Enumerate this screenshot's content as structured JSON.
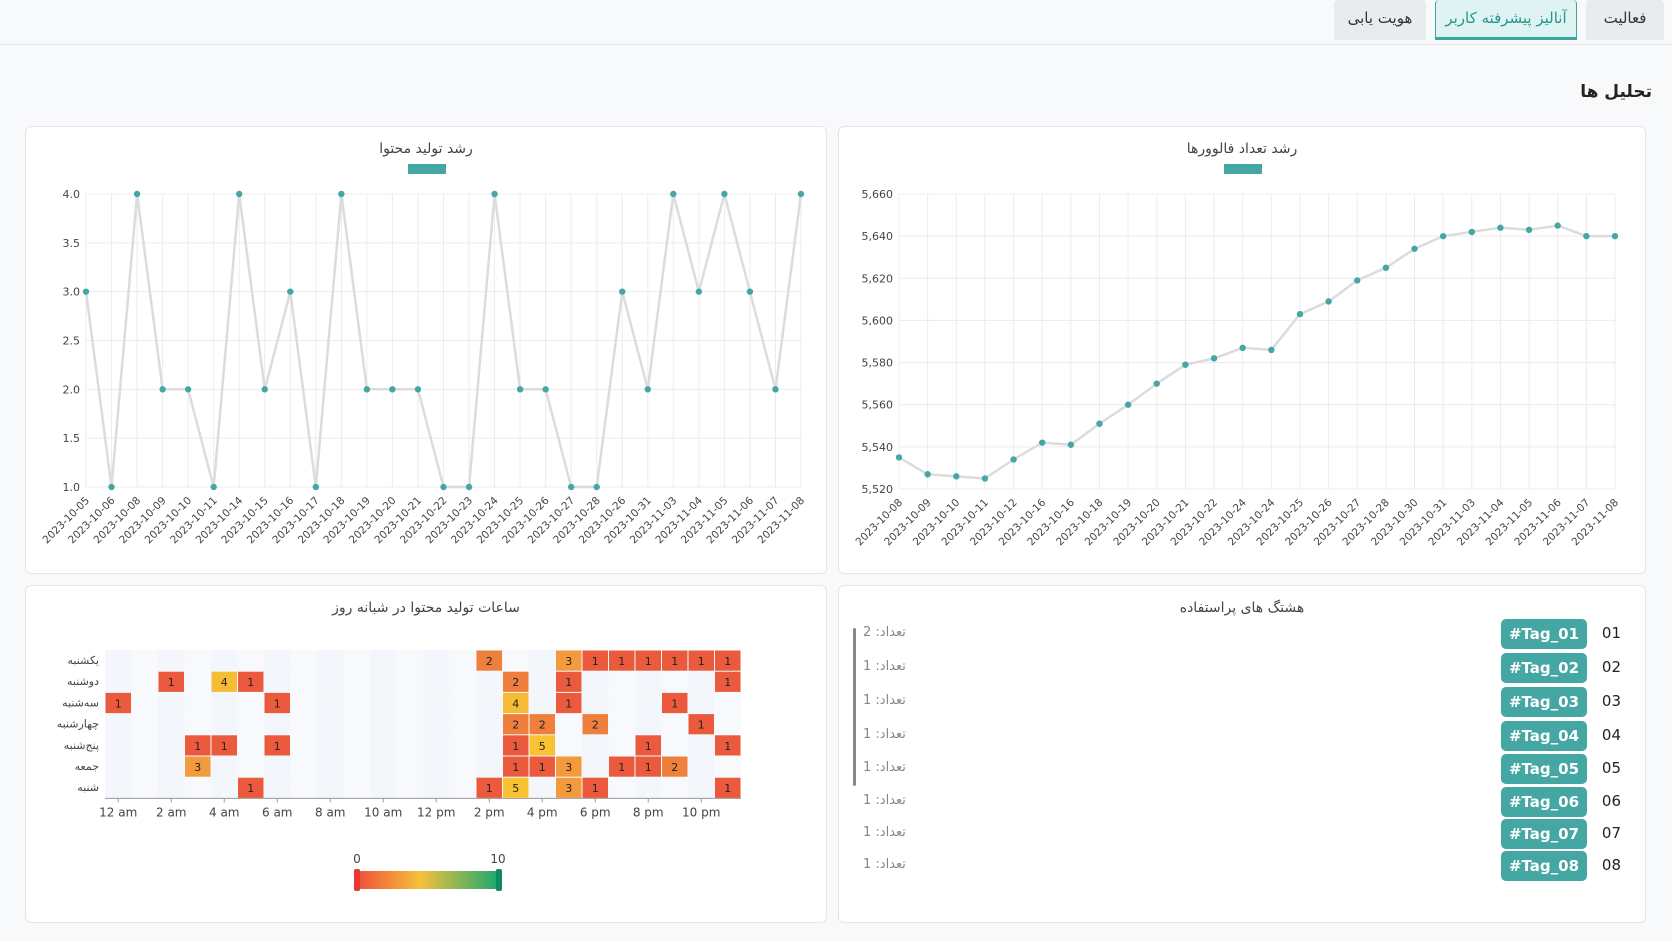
{
  "tabs": [
    {
      "label": "فعالیت",
      "active": false
    },
    {
      "label": "آنالیز پیشرفته کاربر",
      "active": true
    },
    {
      "label": "هویت یابی",
      "active": false
    }
  ],
  "section_title": "تحلیل ها",
  "colors": {
    "accent": "#45a7a4",
    "line": "#dcdcdc",
    "grid": "#ececec"
  },
  "followers_card": {
    "title": "رشد تعداد فالوورها"
  },
  "content_card": {
    "title": "رشد تولید محتوا"
  },
  "heatmap_card": {
    "title": "ساعات تولید محتوا در شبانه روز",
    "scale_min": "0",
    "scale_max": "10"
  },
  "hashtags_card": {
    "title": "هشتگ های پراستفاده",
    "items": [
      {
        "num": "01",
        "tag": "#Tag_01",
        "count": "تعداد: 2"
      },
      {
        "num": "02",
        "tag": "#Tag_02",
        "count": "تعداد: 1"
      },
      {
        "num": "03",
        "tag": "#Tag_03",
        "count": "تعداد: 1"
      },
      {
        "num": "04",
        "tag": "#Tag_04",
        "count": "تعداد: 1"
      },
      {
        "num": "05",
        "tag": "#Tag_05",
        "count": "تعداد: 1"
      },
      {
        "num": "06",
        "tag": "#Tag_06",
        "count": "تعداد: 1"
      },
      {
        "num": "07",
        "tag": "#Tag_07",
        "count": "تعداد: 1"
      },
      {
        "num": "08",
        "tag": "#Tag_08",
        "count": "تعداد: 1"
      }
    ]
  },
  "chart_data": [
    {
      "type": "line",
      "title": "رشد تعداد فالوورها",
      "ylim": [
        5520,
        5660
      ],
      "yticks": [
        "5,520",
        "5,540",
        "5,560",
        "5,580",
        "5,600",
        "5,620",
        "5,640",
        "5,660"
      ],
      "x": [
        "2023-10-08",
        "2023-10-09",
        "2023-10-10",
        "2023-10-11",
        "2023-10-12",
        "2023-10-16",
        "2023-10-16",
        "2023-10-18",
        "2023-10-19",
        "2023-10-20",
        "2023-10-21",
        "2023-10-22",
        "2023-10-24",
        "2023-10-24",
        "2023-10-25",
        "2023-10-26",
        "2023-10-27",
        "2023-10-28",
        "2023-10-30",
        "2023-10-31",
        "2023-11-03",
        "2023-11-04",
        "2023-11-05",
        "2023-11-06",
        "2023-11-07",
        "2023-11-08"
      ],
      "values": [
        5535,
        5527,
        5526,
        5525,
        5534,
        5542,
        5541,
        5551,
        5560,
        5570,
        5579,
        5582,
        5587,
        5586,
        5603,
        5609,
        5619,
        5625,
        5634,
        5640,
        5642,
        5644,
        5643,
        5645,
        5640,
        5640
      ],
      "grid": true
    },
    {
      "type": "line",
      "title": "رشد تولید محتوا",
      "ylim": [
        1,
        4
      ],
      "yticks": [
        "1.0",
        "1.5",
        "2.0",
        "2.5",
        "3.0",
        "3.5",
        "4.0"
      ],
      "x": [
        "2023-10-05",
        "2023-10-06",
        "2023-10-08",
        "2023-10-09",
        "2023-10-10",
        "2023-10-11",
        "2023-10-14",
        "2023-10-15",
        "2023-10-16",
        "2023-10-17",
        "2023-10-18",
        "2023-10-19",
        "2023-10-20",
        "2023-10-21",
        "2023-10-22",
        "2023-10-23",
        "2023-10-24",
        "2023-10-25",
        "2023-10-26",
        "2023-10-27",
        "2023-10-28",
        "2023-10-26",
        "2023-10-31",
        "2023-11-03",
        "2023-11-04",
        "2023-11-05",
        "2023-11-06",
        "2023-11-07",
        "2023-11-08"
      ],
      "values": [
        3,
        1,
        4,
        2,
        2,
        1,
        4,
        2,
        3,
        1,
        4,
        2,
        2,
        2,
        1,
        1,
        4,
        2,
        2,
        1,
        1,
        3,
        2,
        4,
        3,
        4,
        3,
        2,
        4
      ],
      "grid": true
    },
    {
      "type": "heatmap",
      "title": "ساعات تولید محتوا در شبانه روز",
      "rows": [
        "یکشنبه",
        "دوشنبه",
        "سه‌شنبه",
        "چهارشنبه",
        "پنج‌شنبه",
        "جمعه",
        "شنبه"
      ],
      "x_tick_labels": [
        "12 am",
        "2 am",
        "4 am",
        "6 am",
        "8 am",
        "10 am",
        "12 pm",
        "2 pm",
        "4 pm",
        "6 pm",
        "8 pm",
        "10 pm"
      ],
      "cells": [
        {
          "row": 0,
          "hour": 14,
          "value": 2
        },
        {
          "row": 0,
          "hour": 17,
          "value": 3
        },
        {
          "row": 0,
          "hour": 18,
          "value": 1
        },
        {
          "row": 0,
          "hour": 19,
          "value": 1
        },
        {
          "row": 0,
          "hour": 20,
          "value": 1
        },
        {
          "row": 0,
          "hour": 21,
          "value": 1
        },
        {
          "row": 0,
          "hour": 22,
          "value": 1
        },
        {
          "row": 0,
          "hour": 23,
          "value": 1
        },
        {
          "row": 1,
          "hour": 2,
          "value": 1
        },
        {
          "row": 1,
          "hour": 4,
          "value": 4
        },
        {
          "row": 1,
          "hour": 5,
          "value": 1
        },
        {
          "row": 1,
          "hour": 15,
          "value": 2
        },
        {
          "row": 1,
          "hour": 17,
          "value": 1
        },
        {
          "row": 1,
          "hour": 23,
          "value": 1
        },
        {
          "row": 2,
          "hour": 0,
          "value": 1
        },
        {
          "row": 2,
          "hour": 6,
          "value": 1
        },
        {
          "row": 2,
          "hour": 15,
          "value": 4
        },
        {
          "row": 2,
          "hour": 17,
          "value": 1
        },
        {
          "row": 2,
          "hour": 21,
          "value": 1
        },
        {
          "row": 3,
          "hour": 15,
          "value": 2
        },
        {
          "row": 3,
          "hour": 16,
          "value": 2
        },
        {
          "row": 3,
          "hour": 18,
          "value": 2
        },
        {
          "row": 3,
          "hour": 22,
          "value": 1
        },
        {
          "row": 4,
          "hour": 3,
          "value": 1
        },
        {
          "row": 4,
          "hour": 4,
          "value": 1
        },
        {
          "row": 4,
          "hour": 6,
          "value": 1
        },
        {
          "row": 4,
          "hour": 15,
          "value": 1
        },
        {
          "row": 4,
          "hour": 16,
          "value": 5
        },
        {
          "row": 4,
          "hour": 20,
          "value": 1
        },
        {
          "row": 4,
          "hour": 25,
          "value": 1
        },
        {
          "row": 5,
          "hour": 3,
          "value": 3
        },
        {
          "row": 5,
          "hour": 15,
          "value": 1
        },
        {
          "row": 5,
          "hour": 16,
          "value": 1
        },
        {
          "row": 5,
          "hour": 17,
          "value": 3
        },
        {
          "row": 5,
          "hour": 19,
          "value": 1
        },
        {
          "row": 5,
          "hour": 20,
          "value": 1
        },
        {
          "row": 5,
          "hour": 21,
          "value": 2
        },
        {
          "row": 6,
          "hour": 5,
          "value": 1
        },
        {
          "row": 6,
          "hour": 14,
          "value": 1
        },
        {
          "row": 6,
          "hour": 15,
          "value": 5
        },
        {
          "row": 6,
          "hour": 17,
          "value": 3
        },
        {
          "row": 6,
          "hour": 18,
          "value": 1
        },
        {
          "row": 6,
          "hour": 23,
          "value": 1
        }
      ],
      "scale": [
        0,
        10
      ]
    }
  ]
}
